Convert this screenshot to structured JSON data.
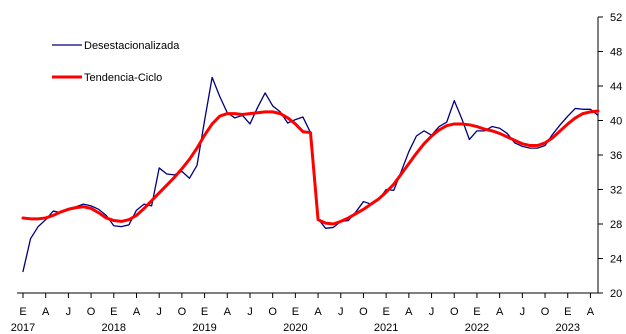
{
  "chart_data": {
    "type": "line",
    "title": "",
    "xlabel": "",
    "ylabel": "",
    "x_start": "2017-01",
    "x_end": "2023-05",
    "month_letters": [
      "E",
      "A",
      "J",
      "O"
    ],
    "years": [
      "2017",
      "2018",
      "2019",
      "2020",
      "2021",
      "2022",
      "2023"
    ],
    "ylim": [
      20,
      52
    ],
    "yticks": [
      20,
      24,
      28,
      32,
      36,
      40,
      44,
      48,
      52
    ],
    "y_axis_side": "right",
    "grid": false,
    "legend_position": "top-left",
    "colors": {
      "desestacionalizada": "#00007f",
      "tendencia": "#ff0000"
    },
    "series": [
      {
        "name": "Desestacionalizada",
        "x": [
          "2017-01",
          "2017-02",
          "2017-03",
          "2017-04",
          "2017-05",
          "2017-06",
          "2017-07",
          "2017-08",
          "2017-09",
          "2017-10",
          "2017-11",
          "2017-12",
          "2018-01",
          "2018-02",
          "2018-03",
          "2018-04",
          "2018-05",
          "2018-06",
          "2018-07",
          "2018-08",
          "2018-09",
          "2018-10",
          "2018-11",
          "2018-12",
          "2019-01",
          "2019-02",
          "2019-03",
          "2019-04",
          "2019-05",
          "2019-06",
          "2019-07",
          "2019-08",
          "2019-09",
          "2019-10",
          "2019-11",
          "2019-12",
          "2020-01",
          "2020-02",
          "2020-03",
          "2020-04",
          "2020-05",
          "2020-06",
          "2020-07",
          "2020-08",
          "2020-09",
          "2020-10",
          "2020-11",
          "2020-12",
          "2021-01",
          "2021-02",
          "2021-03",
          "2021-04",
          "2021-05",
          "2021-06",
          "2021-07",
          "2021-08",
          "2021-09",
          "2021-10",
          "2021-11",
          "2021-12",
          "2022-01",
          "2022-02",
          "2022-03",
          "2022-04",
          "2022-05",
          "2022-06",
          "2022-07",
          "2022-08",
          "2022-09",
          "2022-10",
          "2022-11",
          "2022-12",
          "2023-01",
          "2023-02",
          "2023-03",
          "2023-04",
          "2023-05"
        ],
        "values": [
          22.5,
          26.3,
          27.7,
          28.5,
          29.5,
          29.3,
          29.8,
          30.0,
          30.3,
          30.1,
          29.7,
          29.0,
          27.8,
          27.7,
          27.9,
          29.6,
          30.3,
          30.1,
          34.5,
          33.8,
          33.7,
          34.1,
          33.3,
          34.8,
          40.0,
          45.0,
          42.8,
          40.9,
          40.3,
          40.6,
          39.6,
          41.5,
          43.2,
          41.7,
          41.0,
          39.7,
          40.1,
          40.4,
          38.6,
          28.6,
          27.5,
          27.6,
          28.3,
          28.4,
          29.4,
          30.6,
          30.3,
          30.8,
          32.0,
          31.9,
          34.1,
          36.4,
          38.2,
          38.8,
          38.3,
          39.3,
          39.8,
          42.3,
          40.2,
          37.8,
          38.8,
          38.8,
          39.3,
          39.1,
          38.5,
          37.4,
          37.0,
          36.8,
          36.8,
          37.1,
          38.4,
          39.5,
          40.5,
          41.4,
          41.3,
          41.3,
          40.6
        ]
      },
      {
        "name": "Tendencia-Ciclo",
        "x": [
          "2017-01",
          "2017-02",
          "2017-03",
          "2017-04",
          "2017-05",
          "2017-06",
          "2017-07",
          "2017-08",
          "2017-09",
          "2017-10",
          "2017-11",
          "2017-12",
          "2018-01",
          "2018-02",
          "2018-03",
          "2018-04",
          "2018-05",
          "2018-06",
          "2018-07",
          "2018-08",
          "2018-09",
          "2018-10",
          "2018-11",
          "2018-12",
          "2019-01",
          "2019-02",
          "2019-03",
          "2019-04",
          "2019-05",
          "2019-06",
          "2019-07",
          "2019-08",
          "2019-09",
          "2019-10",
          "2019-11",
          "2019-12",
          "2020-01",
          "2020-02",
          "2020-03",
          "2020-04",
          "2020-05",
          "2020-06",
          "2020-07",
          "2020-08",
          "2020-09",
          "2020-10",
          "2020-11",
          "2020-12",
          "2021-01",
          "2021-02",
          "2021-03",
          "2021-04",
          "2021-05",
          "2021-06",
          "2021-07",
          "2021-08",
          "2021-09",
          "2021-10",
          "2021-11",
          "2021-12",
          "2022-01",
          "2022-02",
          "2022-03",
          "2022-04",
          "2022-05",
          "2022-06",
          "2022-07",
          "2022-08",
          "2022-09",
          "2022-10",
          "2022-11",
          "2022-12",
          "2023-01",
          "2023-02",
          "2023-03",
          "2023-04",
          "2023-05"
        ],
        "values": [
          28.7,
          28.6,
          28.6,
          28.7,
          29.0,
          29.4,
          29.7,
          29.9,
          30.0,
          29.8,
          29.3,
          28.7,
          28.4,
          28.3,
          28.5,
          29.0,
          29.8,
          30.7,
          31.6,
          32.5,
          33.4,
          34.4,
          35.5,
          36.8,
          38.3,
          39.6,
          40.5,
          40.8,
          40.8,
          40.7,
          40.8,
          40.9,
          41.0,
          41.0,
          40.8,
          40.3,
          39.6,
          38.7,
          38.6,
          28.5,
          28.1,
          28.0,
          28.3,
          28.7,
          29.2,
          29.7,
          30.3,
          30.9,
          31.7,
          32.6,
          33.8,
          35.0,
          36.2,
          37.3,
          38.2,
          38.9,
          39.4,
          39.6,
          39.6,
          39.5,
          39.3,
          39.0,
          38.8,
          38.5,
          38.1,
          37.7,
          37.3,
          37.1,
          37.1,
          37.4,
          38.0,
          38.8,
          39.6,
          40.3,
          40.8,
          41.0,
          41.1
        ]
      }
    ]
  }
}
